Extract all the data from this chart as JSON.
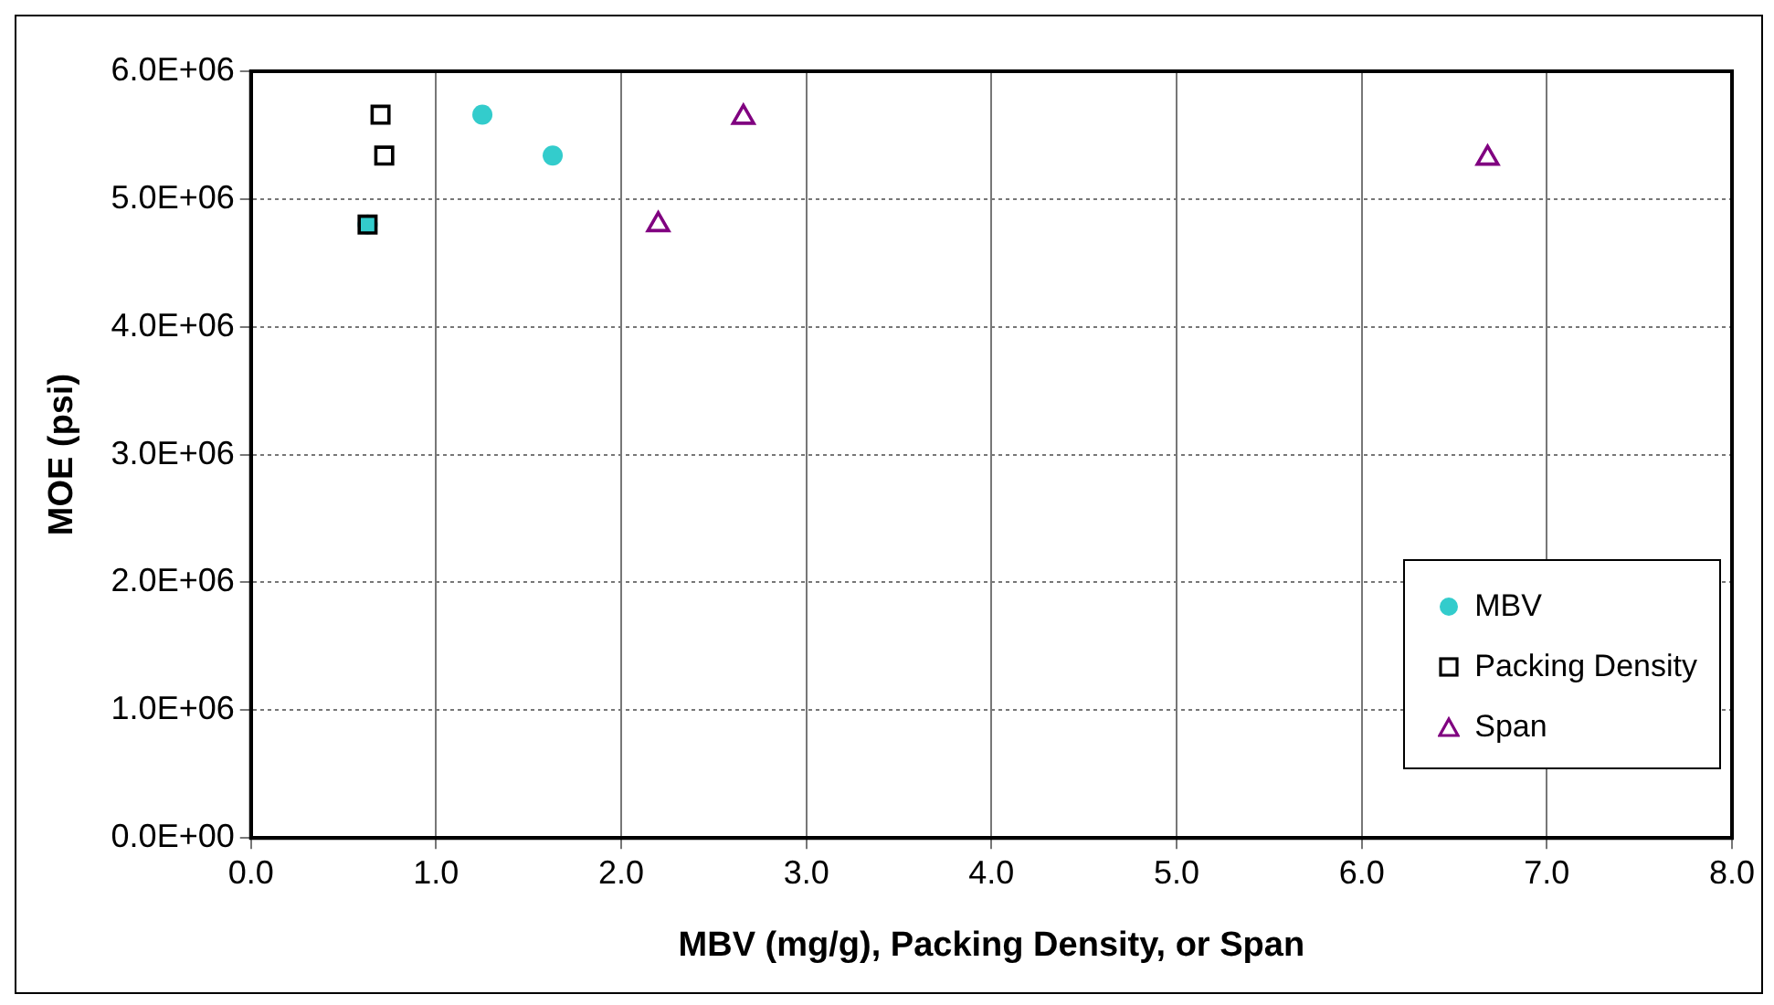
{
  "chart_data": {
    "type": "scatter",
    "xlabel": "MBV (mg/g), Packing Density, or Span",
    "ylabel": "MOE (psi)",
    "series": [
      {
        "name": "MBV",
        "color": "#33cccc",
        "marker": "circle",
        "x": [
          0.63,
          1.25,
          1.63
        ],
        "values": [
          4800000,
          5660000,
          5340000
        ]
      },
      {
        "name": "Packing Density",
        "color": "#000000",
        "marker": "square",
        "x": [
          0.63,
          0.7,
          0.72
        ],
        "values": [
          4800000,
          5660000,
          5340000
        ]
      },
      {
        "name": "Span",
        "color": "#800080",
        "marker": "triangle",
        "x": [
          2.2,
          2.66,
          6.68
        ],
        "values": [
          4800000,
          5640000,
          5320000
        ]
      }
    ],
    "xlim": [
      0,
      8
    ],
    "ylim": [
      0,
      6000000
    ],
    "xticks": [
      {
        "value": 0,
        "label": "0.0"
      },
      {
        "value": 1,
        "label": "1.0"
      },
      {
        "value": 2,
        "label": "2.0"
      },
      {
        "value": 3,
        "label": "3.0"
      },
      {
        "value": 4,
        "label": "4.0"
      },
      {
        "value": 5,
        "label": "5.0"
      },
      {
        "value": 6,
        "label": "6.0"
      },
      {
        "value": 7,
        "label": "7.0"
      },
      {
        "value": 8,
        "label": "8.0"
      }
    ],
    "yticks": [
      {
        "value": 0,
        "label": "0.0E+00"
      },
      {
        "value": 1000000,
        "label": "1.0E+06"
      },
      {
        "value": 2000000,
        "label": "2.0E+06"
      },
      {
        "value": 3000000,
        "label": "3.0E+06"
      },
      {
        "value": 4000000,
        "label": "4.0E+06"
      },
      {
        "value": 5000000,
        "label": "5.0E+06"
      },
      {
        "value": 6000000,
        "label": "6.0E+06"
      }
    ],
    "grid": true,
    "legend": "bottom right"
  }
}
